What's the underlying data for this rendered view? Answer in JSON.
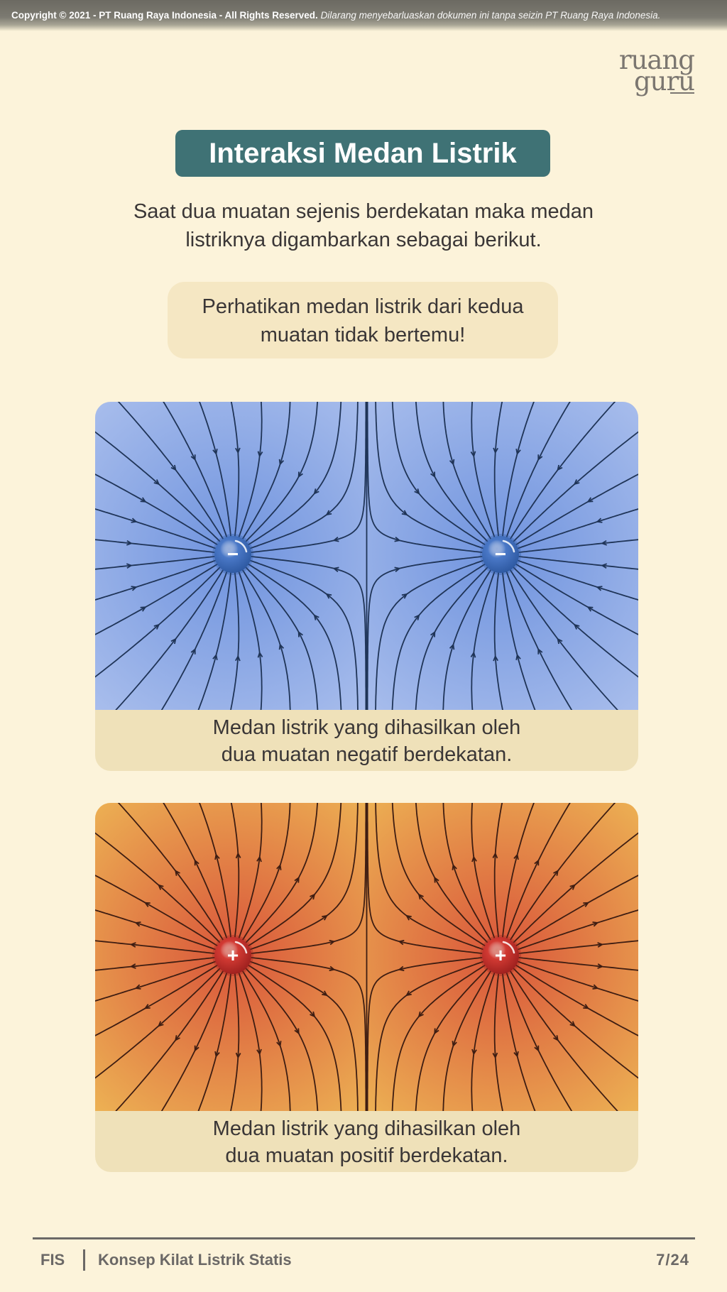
{
  "copyright": {
    "bold": "Copyright © 2021 - PT Ruang Raya Indonesia - All Rights Reserved.",
    "italic": "Dilarang menyebarluaskan dokumen ini tanpa seizin PT Ruang Raya Indonesia."
  },
  "logo": {
    "line1": "ruang",
    "line2": "guru"
  },
  "title": "Interaksi Medan Listrik",
  "intro": {
    "line1": "Saat dua muatan sejenis berdekatan maka medan",
    "line2": "listriknya digambarkan sebagai berikut."
  },
  "note": {
    "line1": "Perhatikan medan listrik dari kedua",
    "line2": "muatan tidak bertemu!"
  },
  "figures": [
    {
      "charge_symbol": "−",
      "field_direction": "inward",
      "colors": {
        "bg_center": "#6f93de",
        "bg_edge": "#b0c3ee",
        "line": "#1f3457",
        "charge": "#4a78c7",
        "charge_dark": "#2c579f"
      },
      "caption": {
        "line1": "Medan listrik yang dihasilkan oleh",
        "line2": "dua muatan negatif berdekatan."
      }
    },
    {
      "charge_symbol": "+",
      "field_direction": "outward",
      "colors": {
        "bg_center": "#d9553a",
        "bg_edge": "#efbd57",
        "line": "#3e1d12",
        "charge": "#d23a33",
        "charge_dark": "#9b1f1d"
      },
      "caption": {
        "line1": "Medan listrik yang dihasilkan oleh",
        "line2": "dua muatan positif berdekatan."
      }
    }
  ],
  "footer": {
    "code": "FIS",
    "title": "Konsep Kilat Listrik Statis",
    "page": "7/24"
  }
}
